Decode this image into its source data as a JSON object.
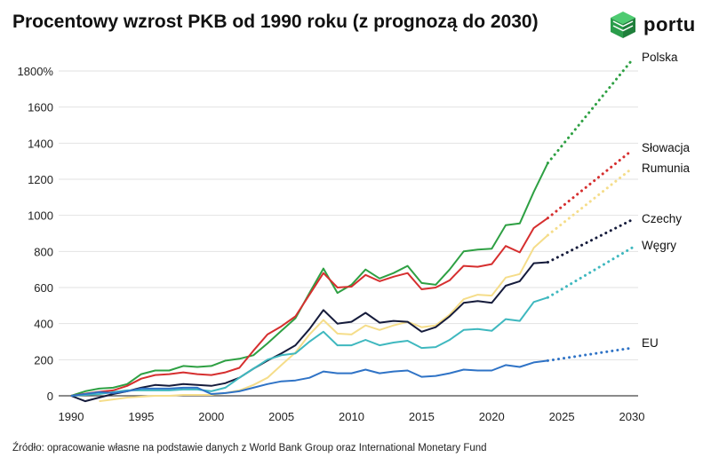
{
  "header": {
    "title": "Procentowy wzrost PKB od 1990 roku (z prognozą do 2030)",
    "logo_text": "portu"
  },
  "footer": {
    "source": "Źródło: opracowanie własne na podstawie danych z World Bank Group oraz International Monetary Fund"
  },
  "chart_data": {
    "type": "line",
    "title": "Procentowy wzrost PKB od 1990 roku (z prognozą do 2030)",
    "xlabel": "",
    "ylabel": "",
    "xlim": [
      1990,
      2030
    ],
    "ylim": [
      -100,
      1900
    ],
    "x_ticks": [
      1990,
      1995,
      2000,
      2005,
      2010,
      2015,
      2020,
      2025,
      2030
    ],
    "y_ticks": [
      0,
      200,
      400,
      600,
      800,
      1000,
      1200,
      1400,
      1600,
      1800
    ],
    "y_tick_labels": [
      "0",
      "200",
      "400",
      "600",
      "800",
      "1000",
      "1200",
      "1400",
      "1600",
      "1800%"
    ],
    "grid": "horizontal",
    "legend": "inline-right",
    "series": [
      {
        "name": "Polska",
        "color": "#2ea043",
        "actual": [
          [
            1990,
            0
          ],
          [
            1991,
            25
          ],
          [
            1992,
            40
          ],
          [
            1993,
            45
          ],
          [
            1994,
            65
          ],
          [
            1995,
            120
          ],
          [
            1996,
            140
          ],
          [
            1997,
            140
          ],
          [
            1998,
            165
          ],
          [
            1999,
            160
          ],
          [
            2000,
            165
          ],
          [
            2001,
            195
          ],
          [
            2002,
            205
          ],
          [
            2003,
            225
          ],
          [
            2004,
            290
          ],
          [
            2005,
            360
          ],
          [
            2006,
            430
          ],
          [
            2007,
            570
          ],
          [
            2008,
            705
          ],
          [
            2009,
            570
          ],
          [
            2010,
            615
          ],
          [
            2011,
            700
          ],
          [
            2012,
            650
          ],
          [
            2013,
            680
          ],
          [
            2014,
            720
          ],
          [
            2015,
            625
          ],
          [
            2016,
            615
          ],
          [
            2017,
            700
          ],
          [
            2018,
            800
          ],
          [
            2019,
            810
          ],
          [
            2020,
            815
          ],
          [
            2021,
            945
          ],
          [
            2022,
            955
          ],
          [
            2023,
            1130
          ],
          [
            2024,
            1290
          ]
        ],
        "forecast": [
          [
            2024,
            1290
          ],
          [
            2030,
            1860
          ]
        ]
      },
      {
        "name": "Słowacja",
        "color": "#d62f2f",
        "actual": [
          [
            1990,
            0
          ],
          [
            1991,
            12
          ],
          [
            1992,
            22
          ],
          [
            1993,
            30
          ],
          [
            1994,
            55
          ],
          [
            1995,
            95
          ],
          [
            1996,
            115
          ],
          [
            1997,
            120
          ],
          [
            1998,
            130
          ],
          [
            1999,
            120
          ],
          [
            2000,
            115
          ],
          [
            2001,
            130
          ],
          [
            2002,
            155
          ],
          [
            2003,
            250
          ],
          [
            2004,
            340
          ],
          [
            2005,
            385
          ],
          [
            2006,
            440
          ],
          [
            2007,
            560
          ],
          [
            2008,
            680
          ],
          [
            2009,
            600
          ],
          [
            2010,
            605
          ],
          [
            2011,
            670
          ],
          [
            2012,
            635
          ],
          [
            2013,
            660
          ],
          [
            2014,
            680
          ],
          [
            2015,
            590
          ],
          [
            2016,
            600
          ],
          [
            2017,
            640
          ],
          [
            2018,
            720
          ],
          [
            2019,
            715
          ],
          [
            2020,
            730
          ],
          [
            2021,
            830
          ],
          [
            2022,
            795
          ],
          [
            2023,
            930
          ],
          [
            2024,
            985
          ]
        ],
        "forecast": [
          [
            2024,
            985
          ],
          [
            2030,
            1360
          ]
        ]
      },
      {
        "name": "Rumunia",
        "color": "#f5dd8a",
        "actual": [
          [
            1992,
            -30
          ],
          [
            1993,
            -20
          ],
          [
            1994,
            -10
          ],
          [
            1995,
            -5
          ],
          [
            1996,
            0
          ],
          [
            1997,
            0
          ],
          [
            1998,
            5
          ],
          [
            1999,
            5
          ],
          [
            2000,
            5
          ],
          [
            2001,
            15
          ],
          [
            2002,
            30
          ],
          [
            2003,
            60
          ],
          [
            2004,
            100
          ],
          [
            2005,
            170
          ],
          [
            2006,
            240
          ],
          [
            2007,
            340
          ],
          [
            2008,
            420
          ],
          [
            2009,
            345
          ],
          [
            2010,
            340
          ],
          [
            2011,
            390
          ],
          [
            2012,
            365
          ],
          [
            2013,
            390
          ],
          [
            2014,
            410
          ],
          [
            2015,
            380
          ],
          [
            2016,
            390
          ],
          [
            2017,
            450
          ],
          [
            2018,
            535
          ],
          [
            2019,
            560
          ],
          [
            2020,
            555
          ],
          [
            2021,
            655
          ],
          [
            2022,
            675
          ],
          [
            2023,
            820
          ],
          [
            2024,
            890
          ]
        ],
        "forecast": [
          [
            2024,
            890
          ],
          [
            2030,
            1260
          ]
        ]
      },
      {
        "name": "Czechy",
        "color": "#151b3b",
        "actual": [
          [
            1990,
            0
          ],
          [
            1991,
            -30
          ],
          [
            1992,
            -10
          ],
          [
            1993,
            10
          ],
          [
            1994,
            25
          ],
          [
            1995,
            45
          ],
          [
            1996,
            60
          ],
          [
            1997,
            55
          ],
          [
            1998,
            65
          ],
          [
            1999,
            60
          ],
          [
            2000,
            55
          ],
          [
            2001,
            70
          ],
          [
            2002,
            100
          ],
          [
            2003,
            150
          ],
          [
            2004,
            195
          ],
          [
            2005,
            235
          ],
          [
            2006,
            280
          ],
          [
            2007,
            370
          ],
          [
            2008,
            475
          ],
          [
            2009,
            400
          ],
          [
            2010,
            410
          ],
          [
            2011,
            460
          ],
          [
            2012,
            405
          ],
          [
            2013,
            415
          ],
          [
            2014,
            410
          ],
          [
            2015,
            355
          ],
          [
            2016,
            380
          ],
          [
            2017,
            440
          ],
          [
            2018,
            515
          ],
          [
            2019,
            525
          ],
          [
            2020,
            515
          ],
          [
            2021,
            610
          ],
          [
            2022,
            635
          ],
          [
            2023,
            735
          ],
          [
            2024,
            740
          ]
        ],
        "forecast": [
          [
            2024,
            740
          ],
          [
            2030,
            975
          ]
        ]
      },
      {
        "name": "Węgry",
        "color": "#3fb8bf",
        "actual": [
          [
            1990,
            0
          ],
          [
            1991,
            5
          ],
          [
            1992,
            10
          ],
          [
            1993,
            20
          ],
          [
            1994,
            30
          ],
          [
            1995,
            30
          ],
          [
            1996,
            30
          ],
          [
            1997,
            30
          ],
          [
            1998,
            35
          ],
          [
            1999,
            35
          ],
          [
            2000,
            25
          ],
          [
            2001,
            45
          ],
          [
            2002,
            100
          ],
          [
            2003,
            150
          ],
          [
            2004,
            200
          ],
          [
            2005,
            225
          ],
          [
            2006,
            235
          ],
          [
            2007,
            300
          ],
          [
            2008,
            355
          ],
          [
            2009,
            280
          ],
          [
            2010,
            280
          ],
          [
            2011,
            310
          ],
          [
            2012,
            280
          ],
          [
            2013,
            295
          ],
          [
            2014,
            305
          ],
          [
            2015,
            265
          ],
          [
            2016,
            270
          ],
          [
            2017,
            310
          ],
          [
            2018,
            365
          ],
          [
            2019,
            370
          ],
          [
            2020,
            360
          ],
          [
            2021,
            425
          ],
          [
            2022,
            415
          ],
          [
            2023,
            520
          ],
          [
            2024,
            545
          ]
        ],
        "forecast": [
          [
            2024,
            545
          ],
          [
            2030,
            820
          ]
        ]
      },
      {
        "name": "EU",
        "color": "#2f73c6",
        "actual": [
          [
            1990,
            0
          ],
          [
            1991,
            10
          ],
          [
            1992,
            20
          ],
          [
            1993,
            15
          ],
          [
            1994,
            25
          ],
          [
            1995,
            40
          ],
          [
            1996,
            40
          ],
          [
            1997,
            40
          ],
          [
            1998,
            45
          ],
          [
            1999,
            45
          ],
          [
            2000,
            10
          ],
          [
            2001,
            15
          ],
          [
            2002,
            25
          ],
          [
            2003,
            45
          ],
          [
            2004,
            65
          ],
          [
            2005,
            80
          ],
          [
            2006,
            85
          ],
          [
            2007,
            100
          ],
          [
            2008,
            135
          ],
          [
            2009,
            125
          ],
          [
            2010,
            125
          ],
          [
            2011,
            145
          ],
          [
            2012,
            125
          ],
          [
            2013,
            135
          ],
          [
            2014,
            140
          ],
          [
            2015,
            105
          ],
          [
            2016,
            110
          ],
          [
            2017,
            125
          ],
          [
            2018,
            145
          ],
          [
            2019,
            140
          ],
          [
            2020,
            140
          ],
          [
            2021,
            170
          ],
          [
            2022,
            160
          ],
          [
            2023,
            185
          ],
          [
            2024,
            195
          ]
        ],
        "forecast": [
          [
            2024,
            195
          ],
          [
            2030,
            265
          ]
        ]
      }
    ]
  }
}
